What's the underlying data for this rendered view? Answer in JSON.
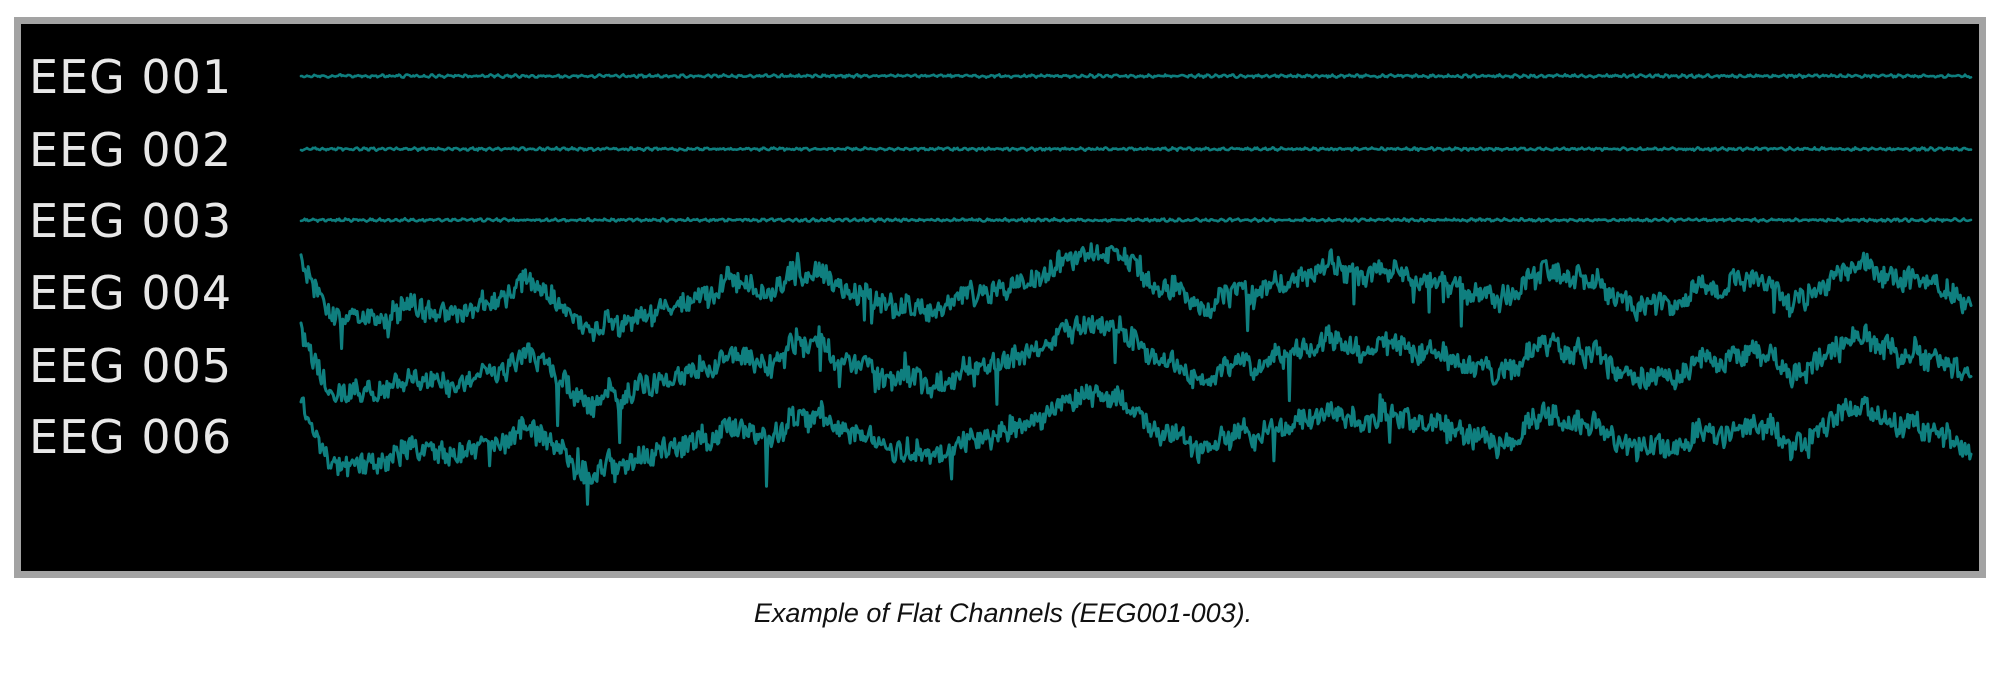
{
  "caption": "Example of Flat Channels (EEG001-003).",
  "colors": {
    "trace": "#0f7f7f",
    "background": "#000000",
    "frame": "#a3a3a3",
    "label": "#e8e8e8"
  },
  "chart_data": {
    "type": "line",
    "grid": false,
    "series": [
      {
        "name": "EEG 001",
        "state": "flat",
        "amplitude": 0.06
      },
      {
        "name": "EEG 002",
        "state": "flat",
        "amplitude": 0.06
      },
      {
        "name": "EEG 003",
        "state": "flat",
        "amplitude": 0.06
      },
      {
        "name": "EEG 004",
        "state": "active",
        "amplitude": 1.0
      },
      {
        "name": "EEG 005",
        "state": "active",
        "amplitude": 1.0
      },
      {
        "name": "EEG 006",
        "state": "active",
        "amplitude": 1.0
      }
    ]
  }
}
